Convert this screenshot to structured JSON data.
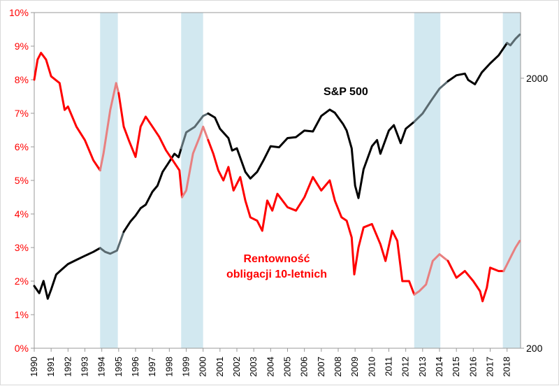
{
  "chart_data": {
    "type": "line",
    "title": "",
    "xlabel": "",
    "x_tick_labels": [
      "1990",
      "1991",
      "1992",
      "1993",
      "1994",
      "1995",
      "1996",
      "1997",
      "1998",
      "1999",
      "2000",
      "2001",
      "2002",
      "2003",
      "2004",
      "2005",
      "2006",
      "2007",
      "2008",
      "2009",
      "2010",
      "2011",
      "2012",
      "2013",
      "2014",
      "2015",
      "2016",
      "2017",
      "2018"
    ],
    "x_range": [
      1990.0,
      2018.8
    ],
    "y_left": {
      "label": "Rentowność obligacji 10-letnich",
      "range": [
        0,
        10
      ],
      "unit": "%",
      "ticks": [
        "0%",
        "1%",
        "2%",
        "3%",
        "4%",
        "5%",
        "6%",
        "7%",
        "8%",
        "9%",
        "10%"
      ]
    },
    "y_right": {
      "scale": "log",
      "range": [
        200,
        3500
      ],
      "ticks": [
        "200",
        "2000"
      ],
      "tick_values": [
        200,
        2000
      ]
    },
    "shaded_periods": [
      [
        1993.9,
        1994.95
      ],
      [
        1998.7,
        2000.0
      ],
      [
        2012.5,
        2014.05
      ],
      [
        2017.75,
        2018.8
      ]
    ],
    "series": [
      {
        "name": "S&P 500",
        "annotation": "S&P 500",
        "axis": "right",
        "color": "#000000",
        "shaded_color": "#5a6a70",
        "x": [
          1990.0,
          1990.3,
          1990.55,
          1990.8,
          1991.0,
          1991.3,
          1991.6,
          1992.0,
          1992.5,
          1993.0,
          1993.5,
          1993.9,
          1994.2,
          1994.5,
          1994.9,
          1995.3,
          1995.7,
          1996.0,
          1996.3,
          1996.6,
          1997.0,
          1997.3,
          1997.6,
          1997.9,
          1998.3,
          1998.55,
          1998.7,
          1999.0,
          1999.5,
          2000.0,
          2000.3,
          2000.7,
          2001.0,
          2001.5,
          2001.72,
          2002.0,
          2002.5,
          2002.8,
          2003.2,
          2003.6,
          2004.0,
          2004.5,
          2005.0,
          2005.5,
          2006.0,
          2006.5,
          2007.0,
          2007.5,
          2007.8,
          2008.3,
          2008.5,
          2008.8,
          2009.0,
          2009.2,
          2009.5,
          2010.0,
          2010.3,
          2010.5,
          2011.0,
          2011.3,
          2011.7,
          2012.0,
          2012.5,
          2013.0,
          2013.5,
          2014.0,
          2014.5,
          2015.0,
          2015.5,
          2015.7,
          2016.1,
          2016.5,
          2017.0,
          2017.5,
          2018.0,
          2018.2,
          2018.5,
          2018.75
        ],
        "y": [
          340,
          320,
          355,
          305,
          330,
          375,
          390,
          410,
          425,
          440,
          455,
          470,
          455,
          448,
          460,
          540,
          590,
          620,
          660,
          680,
          760,
          800,
          900,
          960,
          1050,
          1020,
          1100,
          1260,
          1320,
          1450,
          1480,
          1430,
          1300,
          1200,
          1080,
          1100,
          900,
          850,
          900,
          1000,
          1120,
          1110,
          1200,
          1210,
          1280,
          1270,
          1450,
          1530,
          1490,
          1350,
          1280,
          1100,
          800,
          720,
          920,
          1120,
          1180,
          1050,
          1280,
          1340,
          1150,
          1300,
          1380,
          1480,
          1650,
          1830,
          1950,
          2050,
          2080,
          1970,
          1900,
          2100,
          2270,
          2430,
          2700,
          2650,
          2800,
          2900
        ]
      },
      {
        "name": "Rentowność obligacji 10-letnich",
        "annotation": "Rentowność\nobligacji  10-letnich",
        "axis": "left",
        "color": "#ff0000",
        "shaded_color": "#e88080",
        "x": [
          1990.0,
          1990.2,
          1990.4,
          1990.7,
          1991.0,
          1991.5,
          1991.8,
          1992.0,
          1992.5,
          1993.0,
          1993.5,
          1993.9,
          1994.1,
          1994.5,
          1994.85,
          1995.0,
          1995.3,
          1995.6,
          1996.0,
          1996.3,
          1996.6,
          1997.0,
          1997.4,
          1997.8,
          1998.2,
          1998.6,
          1998.75,
          1999.0,
          1999.4,
          1999.8,
          2000.0,
          2000.3,
          2000.6,
          2000.9,
          2001.2,
          2001.5,
          2001.8,
          2002.2,
          2002.5,
          2002.8,
          2003.2,
          2003.5,
          2003.8,
          2004.1,
          2004.4,
          2005.0,
          2005.5,
          2006.0,
          2006.5,
          2007.0,
          2007.5,
          2007.8,
          2008.2,
          2008.5,
          2008.8,
          2008.95,
          2009.2,
          2009.5,
          2010.0,
          2010.5,
          2010.8,
          2011.2,
          2011.5,
          2011.8,
          2012.2,
          2012.5,
          2012.8,
          2013.2,
          2013.6,
          2014.0,
          2014.5,
          2015.0,
          2015.5,
          2016.0,
          2016.4,
          2016.55,
          2016.8,
          2017.0,
          2017.5,
          2017.8,
          2018.0,
          2018.3,
          2018.5,
          2018.75
        ],
        "y": [
          8.0,
          8.6,
          8.8,
          8.6,
          8.1,
          7.9,
          7.1,
          7.2,
          6.6,
          6.2,
          5.6,
          5.3,
          5.8,
          7.1,
          7.9,
          7.6,
          6.6,
          6.2,
          5.7,
          6.6,
          6.9,
          6.6,
          6.3,
          5.9,
          5.6,
          5.3,
          4.5,
          4.7,
          5.8,
          6.3,
          6.6,
          6.2,
          5.8,
          5.3,
          5.0,
          5.4,
          4.7,
          5.1,
          4.4,
          3.9,
          3.8,
          3.5,
          4.4,
          4.1,
          4.6,
          4.2,
          4.1,
          4.5,
          5.1,
          4.7,
          5.0,
          4.4,
          3.9,
          3.8,
          3.3,
          2.2,
          3.0,
          3.6,
          3.7,
          3.1,
          2.6,
          3.5,
          3.2,
          2.0,
          2.0,
          1.6,
          1.7,
          1.9,
          2.6,
          2.8,
          2.6,
          2.1,
          2.3,
          2.0,
          1.7,
          1.4,
          1.8,
          2.4,
          2.3,
          2.3,
          2.5,
          2.8,
          3.0,
          3.2
        ]
      }
    ]
  }
}
